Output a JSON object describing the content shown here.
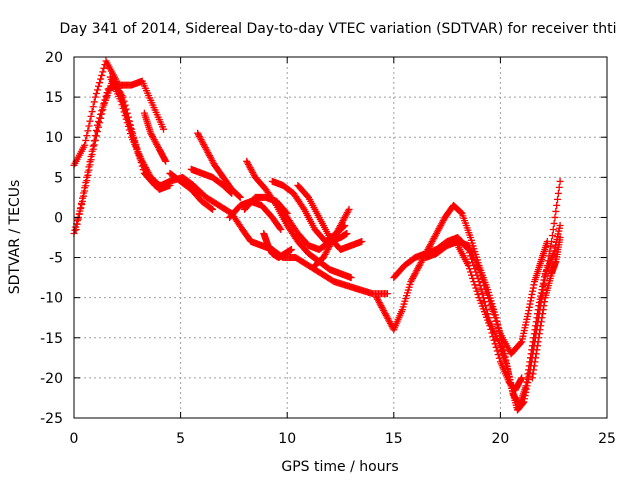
{
  "chart_data": {
    "type": "scatter",
    "title": "Day 341 of 2014, Sidereal Day-to-day VTEC variation (SDTVAR) for receiver thti",
    "xlabel": "GPS time / hours",
    "ylabel": "SDTVAR / TECUs",
    "xlim": [
      0,
      25
    ],
    "ylim": [
      -25,
      20
    ],
    "xticks": [
      "0",
      "5",
      "10",
      "15",
      "20",
      "25"
    ],
    "yticks": [
      "20",
      "15",
      "10",
      "5",
      "0",
      "-5",
      "-10",
      "-15",
      "-20",
      "-25"
    ],
    "grid": true,
    "marker": "plus",
    "color": "#ff0000",
    "series": [
      {
        "x": [
          0.0,
          0.4,
          0.9,
          1.4,
          1.8,
          2.3,
          2.8,
          3.3,
          3.8,
          4.1,
          4.5,
          5.1,
          5.6,
          6.2,
          6.8,
          7.4,
          7.9,
          8.3,
          8.8,
          9.3,
          9.8,
          10.4,
          11.0,
          11.6,
          12.2,
          12.8,
          13.4,
          14.0,
          14.7
        ],
        "y": [
          -2.0,
          2.0,
          8.5,
          14.0,
          17.0,
          15.0,
          10.0,
          5.5,
          4.0,
          4.0,
          4.5,
          5.0,
          4.0,
          2.5,
          1.5,
          0.5,
          -1.5,
          -3.0,
          -3.5,
          -4.0,
          -5.0,
          -5.0,
          -6.0,
          -7.0,
          -8.0,
          -8.5,
          -9.0,
          -9.5,
          -9.5
        ]
      },
      {
        "x": [
          0.0,
          0.5,
          1.0,
          1.5,
          2.0,
          2.5,
          3.0,
          3.5,
          4.0,
          4.5
        ],
        "y": [
          6.5,
          9.0,
          15.0,
          19.5,
          17.0,
          12.5,
          8.0,
          5.0,
          3.5,
          4.0
        ]
      },
      {
        "x": [
          0.1,
          0.6,
          1.1,
          1.6,
          2.1,
          2.7,
          3.2,
          3.7,
          4.2
        ],
        "y": [
          -1.5,
          5.0,
          11.5,
          16.0,
          16.5,
          16.5,
          17.0,
          14.0,
          11.0
        ]
      },
      {
        "x": [
          1.7,
          2.2,
          2.7,
          3.2,
          3.6,
          4.0
        ],
        "y": [
          17.5,
          14.5,
          10.0,
          7.0,
          5.0,
          4.0
        ]
      },
      {
        "x": [
          3.3,
          3.6,
          4.0,
          4.3
        ],
        "y": [
          13.0,
          10.5,
          8.5,
          7.0
        ]
      },
      {
        "x": [
          4.5,
          5.0,
          5.5,
          6.0,
          6.5
        ],
        "y": [
          5.5,
          4.5,
          3.5,
          2.0,
          1.0
        ]
      },
      {
        "x": [
          5.8,
          6.2,
          6.6,
          7.0,
          7.4,
          7.8
        ],
        "y": [
          10.5,
          8.5,
          6.5,
          5.0,
          3.5,
          2.5
        ]
      },
      {
        "x": [
          5.5,
          6.0,
          6.5,
          7.0,
          7.4
        ],
        "y": [
          6.0,
          5.5,
          5.0,
          4.0,
          3.0
        ]
      },
      {
        "x": [
          8.1,
          8.5,
          9.0,
          9.5,
          10.0,
          10.5,
          11.0,
          11.5,
          12.0,
          12.5,
          13.0
        ],
        "y": [
          7.0,
          5.0,
          3.5,
          1.5,
          -1.0,
          -3.0,
          -4.5,
          -5.5,
          -6.5,
          -7.0,
          -7.5
        ]
      },
      {
        "x": [
          8.0,
          8.5,
          9.0,
          9.5,
          10.0
        ],
        "y": [
          1.0,
          2.5,
          2.5,
          2.0,
          0.5
        ]
      },
      {
        "x": [
          7.3,
          7.8,
          8.3,
          8.8,
          9.3,
          9.7
        ],
        "y": [
          0.0,
          1.5,
          2.0,
          1.5,
          0.0,
          -1.5
        ]
      },
      {
        "x": [
          8.9,
          9.1,
          9.3,
          9.6,
          9.9,
          10.2
        ],
        "y": [
          -2.0,
          -3.5,
          -4.5,
          -5.0,
          -4.5,
          -4.0
        ]
      },
      {
        "x": [
          9.3,
          9.8,
          10.3,
          10.8,
          11.3,
          11.8,
          12.3,
          12.7
        ],
        "y": [
          4.5,
          4.0,
          3.0,
          1.0,
          -1.5,
          -3.0,
          -2.0,
          -1.0
        ]
      },
      {
        "x": [
          9.5,
          10.0,
          10.5,
          11.0,
          11.5,
          12.0,
          12.5,
          12.8
        ],
        "y": [
          2.0,
          0.0,
          -2.0,
          -3.5,
          -4.0,
          -3.0,
          -2.5,
          -2.0
        ]
      },
      {
        "x": [
          10.5,
          11.0,
          11.5,
          12.0,
          12.5,
          13.0,
          13.5
        ],
        "y": [
          4.0,
          2.5,
          0.0,
          -2.5,
          -4.0,
          -3.5,
          -3.0
        ]
      },
      {
        "x": [
          11.3,
          11.7,
          12.1,
          12.5,
          12.9
        ],
        "y": [
          -6.0,
          -5.0,
          -3.0,
          -1.0,
          1.0
        ]
      },
      {
        "x": [
          14.2,
          14.6,
          15.0,
          15.4,
          15.8,
          16.2,
          16.6,
          17.0,
          17.4,
          17.8,
          18.2,
          18.6,
          19.0,
          19.4,
          19.8,
          20.2,
          20.5,
          20.8,
          21.1,
          21.4,
          21.7,
          22.0,
          22.4,
          22.8
        ],
        "y": [
          -10.0,
          -12.0,
          -14.0,
          -11.5,
          -8.0,
          -6.0,
          -4.0,
          -2.0,
          0.0,
          1.5,
          0.5,
          -2.5,
          -6.0,
          -9.0,
          -12.5,
          -17.0,
          -21.0,
          -24.0,
          -23.0,
          -19.0,
          -14.0,
          -9.0,
          -3.0,
          4.5
        ]
      },
      {
        "x": [
          15.0,
          15.5,
          16.0,
          16.5,
          17.0,
          17.5,
          18.0,
          18.5,
          19.0,
          19.5,
          20.0,
          20.3,
          20.6,
          20.9,
          21.2,
          21.5,
          21.8,
          22.1,
          22.5,
          22.8
        ],
        "y": [
          -7.5,
          -6.0,
          -5.0,
          -4.5,
          -4.0,
          -3.0,
          -2.5,
          -4.0,
          -8.0,
          -13.0,
          -16.0,
          -18.5,
          -22.0,
          -23.5,
          -21.0,
          -16.0,
          -11.0,
          -7.0,
          -4.5,
          -1.0
        ]
      },
      {
        "x": [
          16.5,
          17.0,
          17.5,
          18.0,
          18.5,
          19.0,
          19.5,
          20.0,
          20.5,
          21.0,
          21.3,
          21.6,
          21.9,
          22.2
        ],
        "y": [
          -5.0,
          -4.5,
          -3.5,
          -3.0,
          -3.5,
          -6.5,
          -10.5,
          -14.5,
          -17.0,
          -15.5,
          -12.0,
          -8.0,
          -5.5,
          -3.0
        ]
      },
      {
        "x": [
          18.0,
          18.5,
          19.0,
          19.5,
          20.0,
          20.4,
          20.7,
          21.0
        ],
        "y": [
          -3.5,
          -6.0,
          -10.0,
          -13.5,
          -18.0,
          -20.5,
          -21.5,
          -20.0
        ]
      },
      {
        "x": [
          21.5,
          21.8,
          22.1,
          22.4,
          22.6,
          22.8
        ],
        "y": [
          -20.0,
          -15.0,
          -10.0,
          -7.0,
          -5.5,
          -2.5
        ]
      }
    ]
  }
}
